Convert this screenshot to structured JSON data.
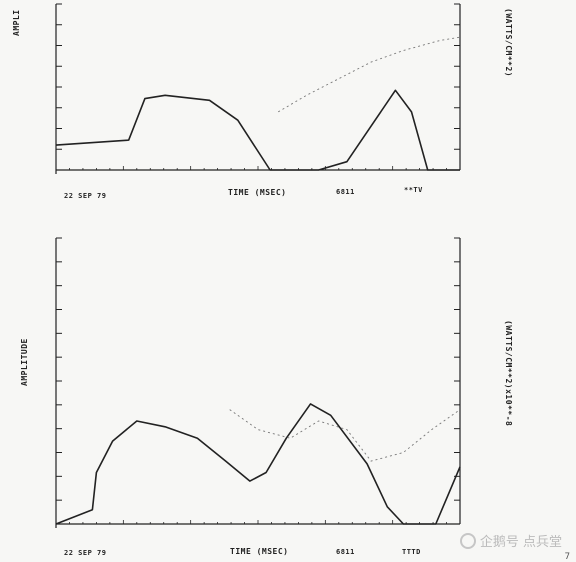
{
  "chart_data": [
    {
      "type": "line",
      "ylabel": "AMPLI",
      "y2label": "(WATTS/CM**2)",
      "xlabel": "TIME (MSEC)",
      "date": "22 SEP 79",
      "annotation": "6811",
      "annotation2": "**TV",
      "series": [
        {
          "values_x": [
            0,
            0.18,
            0.22,
            0.27,
            0.38,
            0.45,
            0.53,
            0.6,
            0.65,
            0.72,
            0.84,
            0.88,
            0.92,
            1.0
          ],
          "values_y": [
            0.15,
            0.18,
            0.43,
            0.45,
            0.42,
            0.3,
            0.0,
            0.0,
            0.0,
            0.05,
            0.48,
            0.35,
            0.0,
            0.0
          ]
        },
        {
          "values_x": [
            0.55,
            0.62,
            0.7,
            0.78,
            0.86,
            0.95,
            1.0
          ],
          "values_y": [
            0.35,
            0.45,
            0.55,
            0.65,
            0.72,
            0.78,
            0.8
          ]
        }
      ]
    },
    {
      "type": "line",
      "ylabel": "AMPLITUDE",
      "y2label": "(WATTS/CM**2)x10**-8",
      "xlabel": "TIME (MSEC)",
      "date": "22 SEP 79",
      "annotation": "6811",
      "annotation2": "TTTD",
      "series": [
        {
          "values_x": [
            0,
            0.09,
            0.1,
            0.14,
            0.2,
            0.27,
            0.35,
            0.42,
            0.48,
            0.52,
            0.57,
            0.63,
            0.68,
            0.77,
            0.82,
            0.86,
            0.94,
            0.97,
            1.0
          ],
          "values_y": [
            0.0,
            0.05,
            0.18,
            0.29,
            0.36,
            0.34,
            0.3,
            0.22,
            0.15,
            0.18,
            0.3,
            0.42,
            0.38,
            0.21,
            0.06,
            0.0,
            0.0,
            0.1,
            0.2
          ]
        },
        {
          "values_x": [
            0.43,
            0.5,
            0.58,
            0.65,
            0.72,
            0.78,
            0.86,
            0.93,
            1.0
          ],
          "values_y": [
            0.4,
            0.33,
            0.3,
            0.36,
            0.33,
            0.22,
            0.25,
            0.33,
            0.4
          ]
        }
      ]
    }
  ],
  "watermark": "企鹅号 点兵堂",
  "page_number": "7",
  "colors": {
    "ink": "#222222",
    "paper": "#f7f7f5"
  }
}
